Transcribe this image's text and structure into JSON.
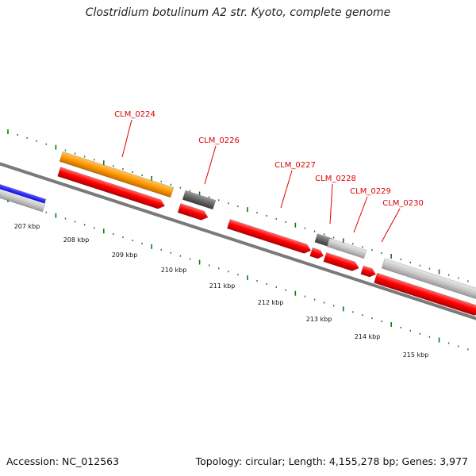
{
  "title": "Clostridium botulinum A2 str. Kyoto, complete genome",
  "accession": "Accession: NC_012563",
  "info": "Topology: circular; Length: 4,155,278 bp; Genes: 3,977",
  "colors": {
    "gene_red": "#ff0000",
    "orange": "#ff9900",
    "blue": "#0000ee",
    "gray_light": "#c8c8c8",
    "gray_dark": "#666666",
    "backbone": "#808080",
    "ticks_green": "#117711",
    "label_red": "#dd0000"
  },
  "scale_labels": [
    "207 kbp",
    "208 kbp",
    "209 kbp",
    "210 kbp",
    "211 kbp",
    "212 kbp",
    "213 kbp",
    "214 kbp",
    "215 kbp"
  ],
  "gene_labels": [
    "CLM_0224",
    "CLM_0226",
    "CLM_0227",
    "CLM_0228",
    "CLM_0229",
    "CLM_0230"
  ]
}
